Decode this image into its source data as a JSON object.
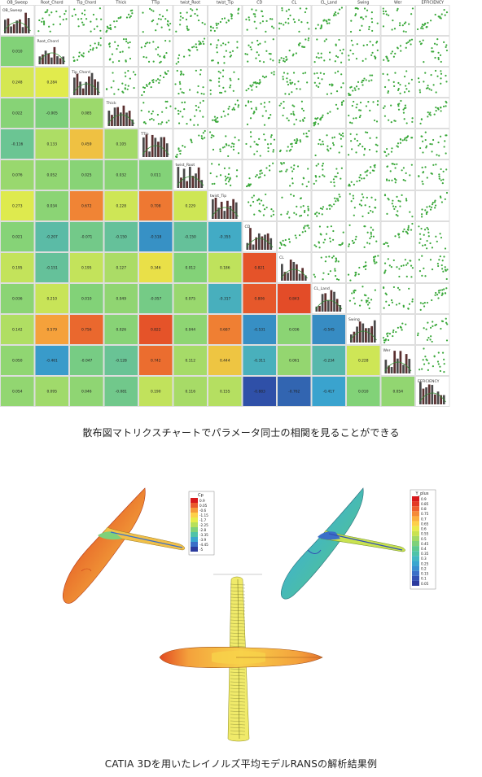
{
  "matrix": {
    "variables": [
      "OB_Sweep",
      "Root_Chord",
      "Tip_Chord",
      "Thick",
      "TTip",
      "twist_Root",
      "twist_Tip",
      "CD",
      "CL",
      "CL_Land",
      "Swing",
      "Wer",
      "EFFICIENCY"
    ],
    "correlations": [
      [
        "",
        "",
        "",
        "",
        "",
        "",
        "",
        "",
        "",
        "",
        "",
        "",
        ""
      ],
      [
        "0.010",
        "",
        "",
        "",
        "",
        "",
        "",
        "",
        "",
        "",
        "",
        "",
        ""
      ],
      [
        "0.248",
        "0.284",
        "",
        "",
        "",
        "",
        "",
        "",
        "",
        "",
        "",
        "",
        ""
      ],
      [
        "0.022",
        "-0.005",
        "0.085",
        "",
        "",
        "",
        "",
        "",
        "",
        "",
        "",
        "",
        ""
      ],
      [
        "-0.116",
        "0.133",
        "0.459",
        "0.105",
        "",
        "",
        "",
        "",
        "",
        "",
        "",
        "",
        ""
      ],
      [
        "0.076",
        "0.052",
        "0.025",
        "0.032",
        "0.011",
        "",
        "",
        "",
        "",
        "",
        "",
        "",
        ""
      ],
      [
        "0.273",
        "0.034",
        "0.672",
        "0.228",
        "0.708",
        "0.229",
        "",
        "",
        "",
        "",
        "",
        "",
        ""
      ],
      [
        "0.021",
        "-0.207",
        "-0.071",
        "-0.150",
        "-0.518",
        "-0.150",
        "-0.355",
        "",
        "",
        "",
        "",
        "",
        ""
      ],
      [
        "0.195",
        "-0.151",
        "0.195",
        "0.127",
        "0.346",
        "0.012",
        "0.186",
        "0.821",
        "",
        "",
        "",
        "",
        ""
      ],
      [
        "0.036",
        "0.210",
        "0.010",
        "0.049",
        "-0.057",
        "0.075",
        "-0.317",
        "0.806",
        "0.843",
        "",
        "",
        "",
        ""
      ],
      [
        "0.142",
        "0.579",
        "0.756",
        "0.026",
        "0.822",
        "0.044",
        "0.687",
        "-0.531",
        "0.036",
        "-0.545",
        "",
        "",
        ""
      ],
      [
        "0.050",
        "-0.461",
        "-0.047",
        "-0.128",
        "0.742",
        "0.112",
        "0.444",
        "-0.311",
        "0.061",
        "-0.234",
        "0.228",
        "",
        ""
      ],
      [
        "0.054",
        "0.095",
        "0.046",
        "-0.081",
        "0.190",
        "0.116",
        "0.155",
        "-0.883",
        "-0.762",
        "-0.417",
        "0.010",
        "0.054",
        ""
      ]
    ]
  },
  "caption_top": "散布図マトリクスチャートでパラメータ同士の相関を見ることができる",
  "legend_cp": {
    "title": "Cp",
    "labels": [
      "0.9",
      "0.05",
      "-0.6",
      "-1.15",
      "-1.7",
      "-2.25",
      "-2.8",
      "-3.35",
      "-3.9",
      "-4.45",
      "-5"
    ],
    "colors": [
      "#d7191c",
      "#ea5a2c",
      "#f59a3a",
      "#fdd049",
      "#e7ec4a",
      "#b7e05a",
      "#7fd17a",
      "#4fc3a8",
      "#3aa6cf",
      "#3b6fc8",
      "#2c3b9e"
    ]
  },
  "legend_yplus": {
    "title": "Y_plus",
    "labels": [
      "0.9",
      "0.85",
      "0.8",
      "0.75",
      "0.7",
      "0.65",
      "0.6",
      "0.55",
      "0.5",
      "0.45",
      "0.4",
      "0.35",
      "0.3",
      "0.25",
      "0.2",
      "0.15",
      "0.1",
      "0.05"
    ],
    "colors": [
      "#d7191c",
      "#e33a25",
      "#ee5f2f",
      "#f58a38",
      "#fbb040",
      "#fdd049",
      "#eaea4a",
      "#c9e250",
      "#a4d965",
      "#7fd17a",
      "#5fc990",
      "#4fc3a8",
      "#44b8c3",
      "#3aa6cf",
      "#3a8fd0",
      "#3b6fc8",
      "#3350b4",
      "#2c3b9e"
    ]
  },
  "caption_bottom": "CATIA 3Dを用いたレイノルズ平均モデルRANSの解析結果例"
}
